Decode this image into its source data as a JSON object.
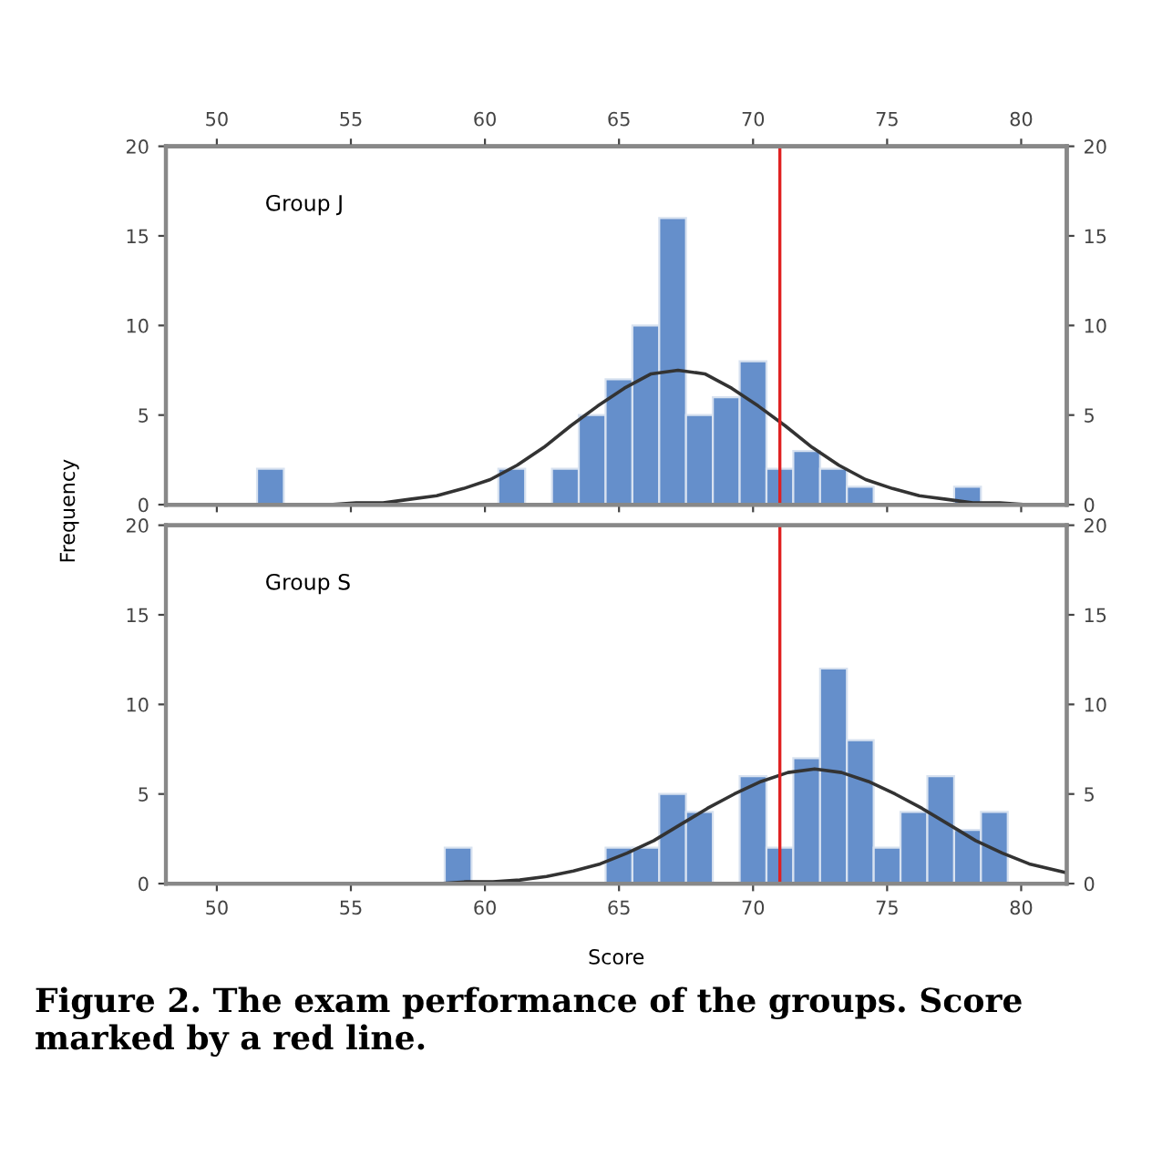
{
  "chart_data": [
    {
      "type": "histogram",
      "xlim": [
        48.1,
        81.7
      ],
      "xticks": [
        50,
        55,
        60,
        65,
        70,
        75,
        80
      ],
      "tick_labels": "y",
      "x2lim": [
        48.1,
        81.7
      ],
      "x2ticks": [
        50,
        55,
        60,
        65,
        70,
        75,
        80
      ],
      "ylim": [
        0,
        20
      ],
      "yticks": [
        0,
        5,
        10,
        15,
        20
      ],
      "y2lim": [
        0,
        20
      ],
      "y2ticks": [
        0,
        5,
        10,
        15,
        20
      ],
      "ylabel": "Frequency",
      "annotations": [
        "Group J"
      ],
      "grid": false,
      "bins": [
        51.5,
        52.5,
        53.5,
        54.5,
        55.5,
        56.5,
        57.5,
        58.5,
        59.5,
        60.5,
        61.5,
        62.5,
        63.5,
        64.5,
        65.5,
        66.5,
        67.5,
        68.5,
        69.5,
        70.5,
        71.5,
        72.5,
        73.5,
        74.5,
        75.5,
        76.5,
        77.5,
        78.5
      ],
      "series": [
        {
          "color": "#658fcb",
          "values": [
            2,
            0,
            0,
            0,
            0,
            0,
            0,
            0,
            0,
            2,
            0,
            2,
            5,
            7,
            10,
            16,
            5,
            6,
            8,
            2,
            3,
            2,
            1,
            0,
            0,
            0,
            1
          ]
        },
        {
          "type": "line",
          "color": "#333333",
          "x": [
            48.1,
            49.2,
            52.2,
            54.2,
            55.2,
            56.2,
            57.2,
            58.2,
            59.2,
            60.2,
            61.2,
            62.2,
            63.2,
            64.2,
            65.2,
            66.2,
            67.2,
            68.2,
            69.2,
            70.2,
            71.2,
            72.2,
            73.2,
            74.2,
            75.2,
            76.2,
            77.2,
            78.2,
            79.2,
            80.2,
            81.7
          ],
          "values": [
            0,
            0,
            0,
            0,
            0.1,
            0.1,
            0.3,
            0.5,
            0.9,
            1.4,
            2.2,
            3.2,
            4.4,
            5.5,
            6.5,
            7.3,
            7.5,
            7.3,
            6.5,
            5.5,
            4.4,
            3.2,
            2.2,
            1.4,
            0.9,
            0.5,
            0.3,
            0.1,
            0.1,
            0,
            0
          ]
        }
      ],
      "ref_lines": [
        {
          "axis": "x",
          "value": 71.0,
          "color": "#e02020"
        }
      ]
    },
    {
      "type": "histogram",
      "xlim": [
        48.1,
        81.7
      ],
      "xticks": [
        50,
        55,
        60,
        65,
        70,
        75,
        80
      ],
      "ylim": [
        0,
        20
      ],
      "yticks": [
        0,
        5,
        10,
        15,
        20
      ],
      "y2lim": [
        0,
        20
      ],
      "y2ticks": [
        0,
        5,
        10,
        15,
        20
      ],
      "xlabel": "Score",
      "annotations": [
        "Group S",
        "Figure 2. The exam performance of the groups. Score marked by a red line."
      ],
      "grid": false,
      "bins": [
        58.5,
        59.5,
        60.5,
        61.5,
        62.5,
        63.5,
        64.5,
        65.5,
        66.5,
        67.5,
        68.5,
        69.5,
        70.5,
        71.5,
        72.5,
        73.5,
        74.5,
        75.5,
        76.5,
        77.5,
        78.5,
        79.5
      ],
      "series": [
        {
          "color": "#658fcb",
          "values": [
            2,
            0,
            0,
            0,
            0,
            0,
            2,
            2,
            5,
            4,
            0,
            6,
            2,
            7,
            12,
            8,
            2,
            4,
            6,
            3,
            4
          ]
        },
        {
          "type": "line",
          "color": "#333333",
          "x": [
            48.1,
            56.3,
            58.3,
            59.3,
            60.3,
            61.3,
            62.3,
            63.3,
            64.3,
            65.3,
            66.3,
            67.3,
            68.3,
            69.3,
            70.3,
            71.3,
            72.3,
            73.3,
            74.3,
            75.3,
            76.3,
            77.3,
            78.3,
            79.3,
            80.3,
            81.7
          ],
          "values": [
            0,
            0,
            0,
            0.1,
            0.1,
            0.2,
            0.4,
            0.7,
            1.1,
            1.7,
            2.4,
            3.3,
            4.2,
            5.0,
            5.7,
            6.2,
            6.4,
            6.2,
            5.7,
            5.0,
            4.2,
            3.3,
            2.4,
            1.7,
            1.1,
            0.6
          ]
        }
      ],
      "ref_lines": [
        {
          "axis": "x",
          "value": 71.0,
          "color": "#e02020"
        }
      ]
    }
  ]
}
